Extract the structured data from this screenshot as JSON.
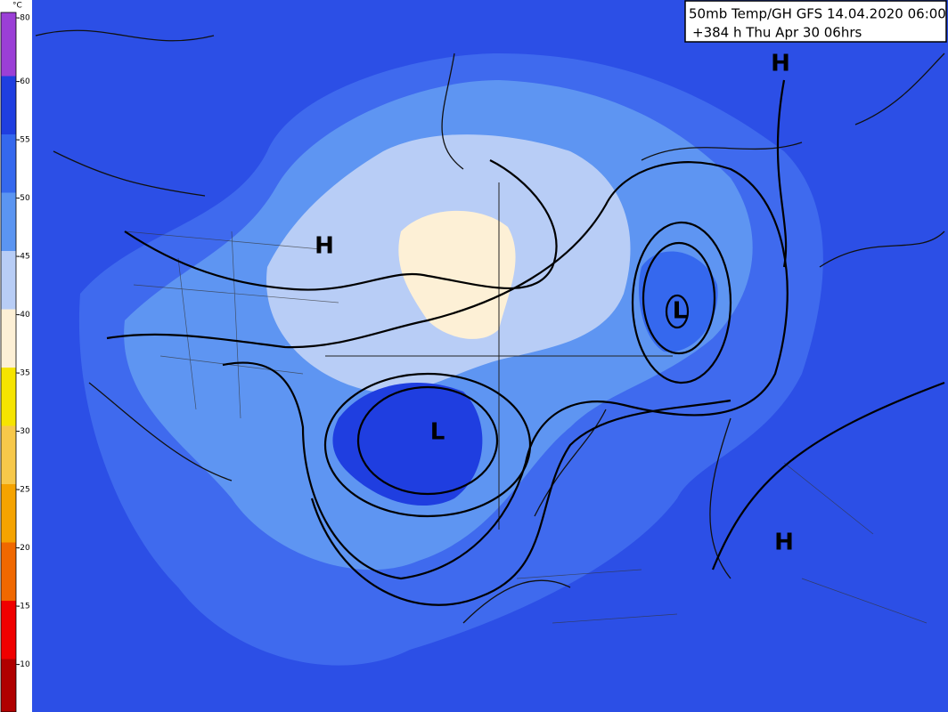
{
  "title": {
    "line1": "50mb Temp/GH GFS 14.04.2020 06:00",
    "line2": "+384 h Thu Apr 30 06hrs"
  },
  "legend": {
    "unit": "°C",
    "bands": [
      {
        "label": "-80",
        "color": "#9b3fd6"
      },
      {
        "label": "-60",
        "color": "#1f3ee0"
      },
      {
        "label": "-55",
        "color": "#3568ee"
      },
      {
        "label": "-50",
        "color": "#5b95f2"
      },
      {
        "label": "-45",
        "color": "#b8cdf6"
      },
      {
        "label": "-40",
        "color": "#fdf0d6"
      },
      {
        "label": "-35",
        "color": "#f6e400"
      },
      {
        "label": "-30",
        "color": "#f7c84a"
      },
      {
        "label": "-25",
        "color": "#f5a300"
      },
      {
        "label": "-20",
        "color": "#f06800"
      },
      {
        "label": "-15",
        "color": "#f00000"
      },
      {
        "label": "-10",
        "color": "#b00000"
      }
    ]
  },
  "pressure_centers": [
    "H",
    "L",
    "H",
    "L",
    "H"
  ]
}
